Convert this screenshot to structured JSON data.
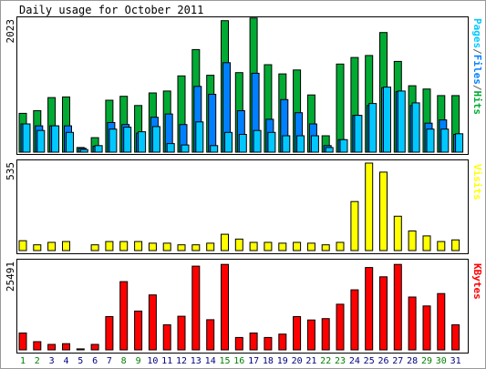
{
  "chart_data": [
    {
      "type": "bar",
      "title": "Daily usage for October 2011",
      "ylabel": "Pages/Files/Hits",
      "ymax_label": "2023",
      "categories": [
        "1",
        "2",
        "3",
        "4",
        "5",
        "6",
        "7",
        "8",
        "9",
        "10",
        "11",
        "12",
        "13",
        "14",
        "15",
        "16",
        "17",
        "18",
        "19",
        "20",
        "21",
        "22",
        "23",
        "24",
        "25",
        "26",
        "27",
        "28",
        "29",
        "30",
        "31"
      ],
      "series": [
        {
          "name": "Hits",
          "color": "#00aa33",
          "values": [
            590,
            630,
            830,
            840,
            70,
            220,
            790,
            850,
            710,
            900,
            930,
            1160,
            1560,
            1170,
            2000,
            1210,
            2040,
            1330,
            1190,
            1250,
            870,
            250,
            1340,
            1440,
            1470,
            1820,
            1380,
            1010,
            960,
            860,
            860
          ]
        },
        {
          "name": "Files",
          "color": "#0080ff",
          "values": [
            430,
            400,
            400,
            400,
            60,
            90,
            450,
            420,
            290,
            530,
            580,
            420,
            1000,
            880,
            1360,
            630,
            1200,
            500,
            800,
            600,
            430,
            100,
            190,
            560,
            710,
            980,
            920,
            710,
            440,
            490,
            270
          ]
        },
        {
          "name": "Pages",
          "color": "#00c8ff",
          "values": [
            430,
            330,
            400,
            300,
            40,
            100,
            350,
            380,
            310,
            390,
            130,
            110,
            460,
            100,
            300,
            270,
            330,
            300,
            250,
            250,
            250,
            70,
            190,
            560,
            740,
            990,
            930,
            750,
            350,
            350,
            280
          ]
        }
      ],
      "legend": [
        "Pages",
        "/",
        "Files",
        "/",
        "Hits"
      ],
      "legend_colors": [
        "#00c8ff",
        "#606060",
        "#0080ff",
        "#606060",
        "#00aa33"
      ],
      "ylim": [
        0,
        2023
      ],
      "grid": false
    },
    {
      "type": "bar",
      "ylabel": "Visits",
      "ymax_label": "535",
      "series": [
        {
          "name": "Visits",
          "color": "#ffff00",
          "values": [
            60,
            35,
            50,
            55,
            0,
            35,
            55,
            55,
            55,
            45,
            45,
            35,
            35,
            45,
            100,
            70,
            50,
            50,
            45,
            50,
            45,
            35,
            50,
            300,
            535,
            480,
            210,
            120,
            90,
            55,
            65
          ]
        }
      ],
      "ylim": [
        0,
        535
      ],
      "grid": false
    },
    {
      "type": "bar",
      "ylabel": "KBytes",
      "ymax_label": "25491",
      "series": [
        {
          "name": "KBytes",
          "color": "#ff0000",
          "values": [
            4900,
            2400,
            1600,
            1800,
            300,
            1600,
            9700,
            19900,
            11300,
            16000,
            7300,
            9800,
            24400,
            8800,
            24900,
            3600,
            4900,
            3600,
            4600,
            9700,
            8700,
            9100,
            13300,
            17500,
            24000,
            21300,
            24900,
            15400,
            12800,
            16400,
            7300
          ]
        }
      ],
      "ylim": [
        0,
        25491
      ],
      "grid": false
    }
  ],
  "day_label_colors": [
    "#008000",
    "#008000",
    "#000080",
    "#000080",
    "#000080",
    "#000080",
    "#000080",
    "#008000",
    "#008000",
    "#000080",
    "#000080",
    "#000080",
    "#000080",
    "#000080",
    "#008000",
    "#008000",
    "#000080",
    "#000080",
    "#000080",
    "#000080",
    "#000080",
    "#008000",
    "#008000",
    "#000080",
    "#000080",
    "#000080",
    "#000080",
    "#000080",
    "#008000",
    "#008000",
    "#000080"
  ]
}
